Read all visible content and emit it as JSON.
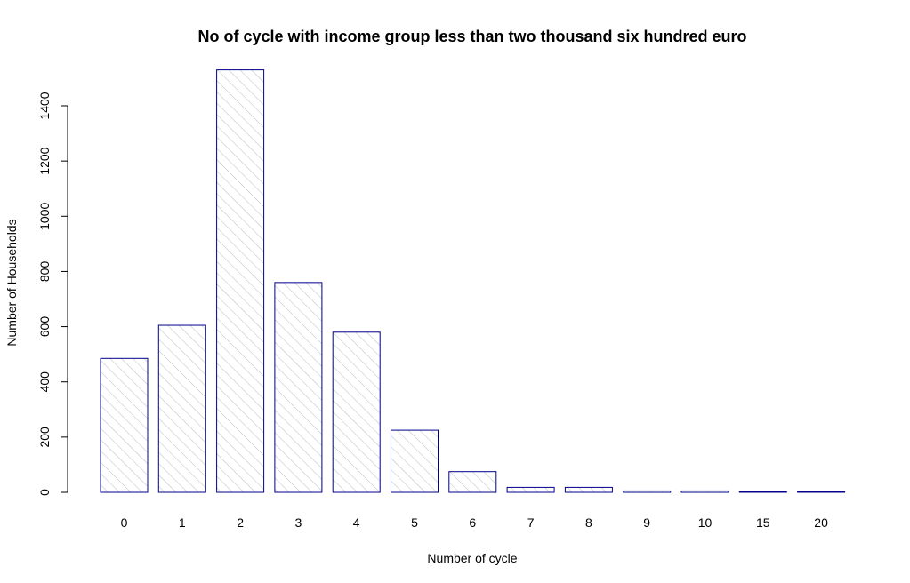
{
  "chart_data": {
    "type": "bar",
    "title": "No of cycle with income group less than two thousand six hundred euro",
    "xlabel": "Number of cycle",
    "ylabel": "Number of Households",
    "categories": [
      "0",
      "1",
      "2",
      "3",
      "4",
      "5",
      "6",
      "7",
      "8",
      "9",
      "10",
      "15",
      "20"
    ],
    "values": [
      485,
      605,
      1530,
      760,
      580,
      225,
      75,
      18,
      18,
      5,
      5,
      1,
      1
    ],
    "ylim": [
      0,
      1530
    ],
    "yticks": [
      0,
      200,
      400,
      600,
      800,
      1000,
      1200,
      1400
    ],
    "grid": false,
    "bar_border_color": "#00008b",
    "bar_hatch_color": "#bdbdbd"
  }
}
